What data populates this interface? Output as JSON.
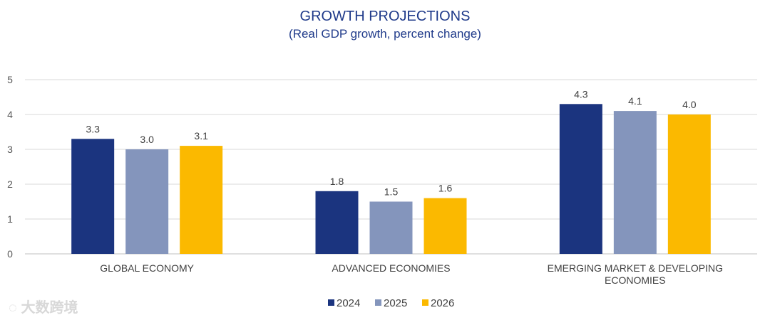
{
  "chart_data": {
    "type": "bar",
    "title": "GROWTH PROJECTIONS",
    "subtitle": "(Real GDP growth, percent change)",
    "categories": [
      [
        "GLOBAL ECONOMY"
      ],
      [
        "ADVANCED ECONOMIES"
      ],
      [
        "EMERGING MARKET & DEVELOPING",
        "ECONOMIES"
      ]
    ],
    "series": [
      {
        "name": "2024",
        "color": "#1b347f",
        "values": [
          3.3,
          1.8,
          4.3
        ]
      },
      {
        "name": "2025",
        "color": "#8495bc",
        "values": [
          3.0,
          1.5,
          4.1
        ]
      },
      {
        "name": "2026",
        "color": "#fbb900",
        "values": [
          3.1,
          1.6,
          4.0
        ]
      }
    ],
    "ylim": [
      0,
      5
    ],
    "yticks": [
      0,
      1,
      2,
      3,
      4,
      5
    ],
    "grid": true,
    "legend": "bottom-center",
    "xlabel": "",
    "ylabel": ""
  },
  "watermark": "大数跨境"
}
